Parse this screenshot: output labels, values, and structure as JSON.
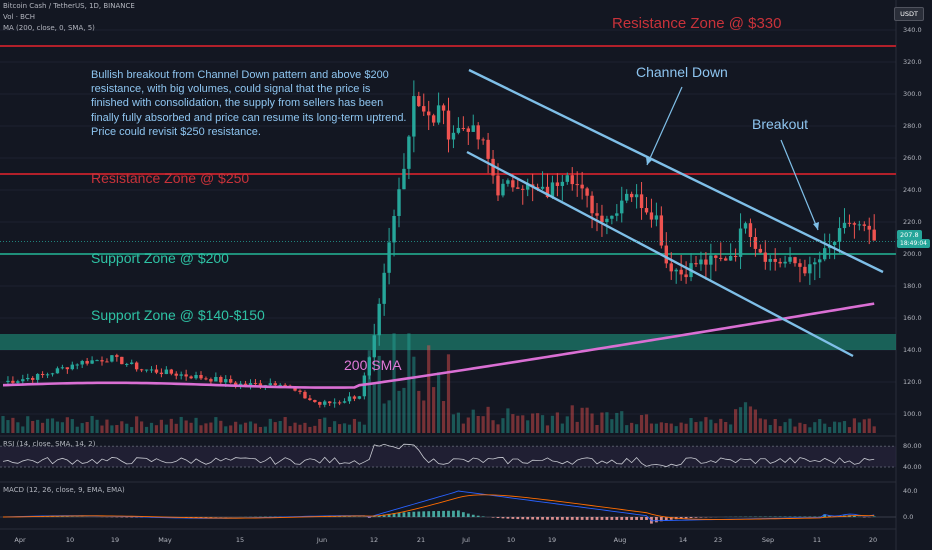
{
  "header": {
    "symbol": "Bitcoin Cash / TetherUS, 1D, BINANCE",
    "volume": "Vol · BCH",
    "ma": "MA (200, close, 0, SMA, 5)",
    "quote_currency": "USDT"
  },
  "indicators": {
    "rsi_label": "RSI (14, close, SMA, 14, 2)",
    "macd_label": "MACD (12, 26, close, 9, EMA, EMA)"
  },
  "price_tag": {
    "price": "207.8",
    "countdown": "18:49:04"
  },
  "annotations": {
    "note": "Bullish breakout from Channel Down pattern and above $200 resistance, with big volumes, could signal that the price is finished with consolidation, the supply from sellers has been finally fully absorbed and price can resume its long-term uptrend. Price could revisit $250 resistance.",
    "resistance_330": "Resistance Zone @ $330",
    "resistance_250": "Resistance Zone @ $250",
    "support_200": "Support Zone @ $200",
    "support_140": "Support Zone @ $140-$150",
    "channel": "Channel Down",
    "breakout": "Breakout",
    "sma": "200 SMA"
  },
  "colors": {
    "background": "#131722",
    "bull": "#26a69a",
    "bear": "#ef5350",
    "sma": "#da6fd4",
    "channel": "#7fbfe8",
    "resistance": "#b2202a",
    "support": "#1f8f7a"
  },
  "chart_data": {
    "type": "candlestick",
    "y_axis": {
      "ticks": [
        100.0,
        120.0,
        140.0,
        160.0,
        180.0,
        200.0,
        220.0,
        240.0,
        260.0,
        280.0,
        300.0,
        320.0,
        340.0
      ],
      "ylim": [
        88,
        348
      ]
    },
    "x_axis_labels": [
      "Apr",
      "10",
      "19",
      "May",
      "15",
      "Jun",
      "12",
      "21",
      "Jul",
      "10",
      "19",
      "Aug",
      "14",
      "23",
      "Sep",
      "11",
      "20"
    ],
    "rsi": {
      "ticks": [
        80.0,
        40.0
      ],
      "range": [
        20,
        90
      ]
    },
    "macd": {
      "ticks": [
        40.0,
        0.0
      ],
      "range": [
        -15,
        45
      ]
    },
    "horizontal_levels": {
      "resistance": [
        330,
        250
      ],
      "support": [
        200
      ],
      "support_zone": [
        140,
        150
      ]
    },
    "keyframes": [
      {
        "d": 0,
        "p": 120
      },
      {
        "d": 8,
        "p": 124
      },
      {
        "d": 15,
        "p": 132
      },
      {
        "d": 22,
        "p": 135
      },
      {
        "d": 28,
        "p": 128
      },
      {
        "d": 35,
        "p": 125
      },
      {
        "d": 42,
        "p": 122
      },
      {
        "d": 49,
        "p": 118
      },
      {
        "d": 56,
        "p": 120
      },
      {
        "d": 60,
        "p": 112
      },
      {
        "d": 64,
        "p": 106
      },
      {
        "d": 68,
        "p": 108
      },
      {
        "d": 72,
        "p": 112
      },
      {
        "d": 75,
        "p": 145
      },
      {
        "d": 78,
        "p": 205
      },
      {
        "d": 80,
        "p": 240
      },
      {
        "d": 82,
        "p": 275
      },
      {
        "d": 83,
        "p": 300
      },
      {
        "d": 85,
        "p": 290
      },
      {
        "d": 87,
        "p": 280
      },
      {
        "d": 88,
        "p": 295
      },
      {
        "d": 90,
        "p": 276
      },
      {
        "d": 94,
        "p": 280
      },
      {
        "d": 97,
        "p": 268
      },
      {
        "d": 100,
        "p": 240
      },
      {
        "d": 104,
        "p": 245
      },
      {
        "d": 107,
        "p": 240
      },
      {
        "d": 110,
        "p": 238
      },
      {
        "d": 114,
        "p": 253
      },
      {
        "d": 117,
        "p": 238
      },
      {
        "d": 120,
        "p": 224
      },
      {
        "d": 123,
        "p": 224
      },
      {
        "d": 126,
        "p": 240
      },
      {
        "d": 129,
        "p": 232
      },
      {
        "d": 132,
        "p": 223
      },
      {
        "d": 134,
        "p": 195
      },
      {
        "d": 137,
        "p": 188
      },
      {
        "d": 140,
        "p": 194
      },
      {
        "d": 145,
        "p": 196
      },
      {
        "d": 148,
        "p": 202
      },
      {
        "d": 150,
        "p": 223
      },
      {
        "d": 152,
        "p": 206
      },
      {
        "d": 155,
        "p": 196
      },
      {
        "d": 160,
        "p": 194
      },
      {
        "d": 163,
        "p": 190
      },
      {
        "d": 166,
        "p": 200
      },
      {
        "d": 169,
        "p": 212
      },
      {
        "d": 171,
        "p": 220
      },
      {
        "d": 174,
        "p": 215
      },
      {
        "d": 176,
        "p": 208
      }
    ]
  }
}
